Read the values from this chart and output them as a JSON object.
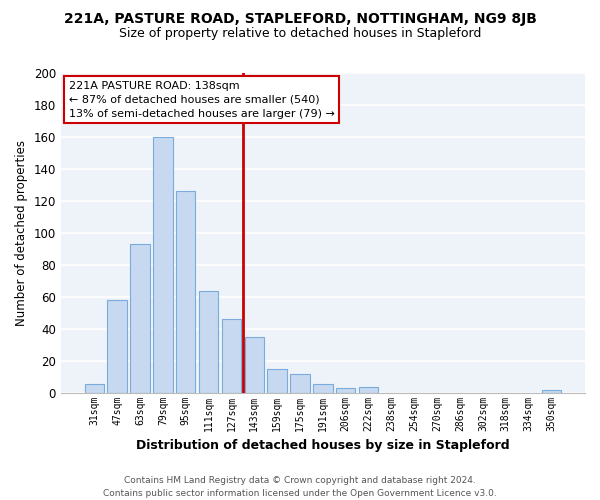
{
  "title": "221A, PASTURE ROAD, STAPLEFORD, NOTTINGHAM, NG9 8JB",
  "subtitle": "Size of property relative to detached houses in Stapleford",
  "xlabel": "Distribution of detached houses by size in Stapleford",
  "ylabel": "Number of detached properties",
  "bar_labels": [
    "31sqm",
    "47sqm",
    "63sqm",
    "79sqm",
    "95sqm",
    "111sqm",
    "127sqm",
    "143sqm",
    "159sqm",
    "175sqm",
    "191sqm",
    "206sqm",
    "222sqm",
    "238sqm",
    "254sqm",
    "270sqm",
    "286sqm",
    "302sqm",
    "318sqm",
    "334sqm",
    "350sqm"
  ],
  "bar_values": [
    6,
    58,
    93,
    160,
    126,
    64,
    46,
    35,
    15,
    12,
    6,
    3,
    4,
    0,
    0,
    0,
    0,
    0,
    0,
    0,
    2
  ],
  "bar_color": "#c6d9f1",
  "bar_edge_color": "#7aabdb",
  "ylim": [
    0,
    200
  ],
  "yticks": [
    0,
    20,
    40,
    60,
    80,
    100,
    120,
    140,
    160,
    180,
    200
  ],
  "vline_color": "#cc0000",
  "annotation_title": "221A PASTURE ROAD: 138sqm",
  "annotation_line1": "← 87% of detached houses are smaller (540)",
  "annotation_line2": "13% of semi-detached houses are larger (79) →",
  "annotation_box_color": "#ffffff",
  "annotation_box_edge": "#cc0000",
  "footer_line1": "Contains HM Land Registry data © Crown copyright and database right 2024.",
  "footer_line2": "Contains public sector information licensed under the Open Government Licence v3.0.",
  "bg_color": "#eef2f9",
  "grid_color": "#ffffff",
  "fig_bg": "#ffffff"
}
